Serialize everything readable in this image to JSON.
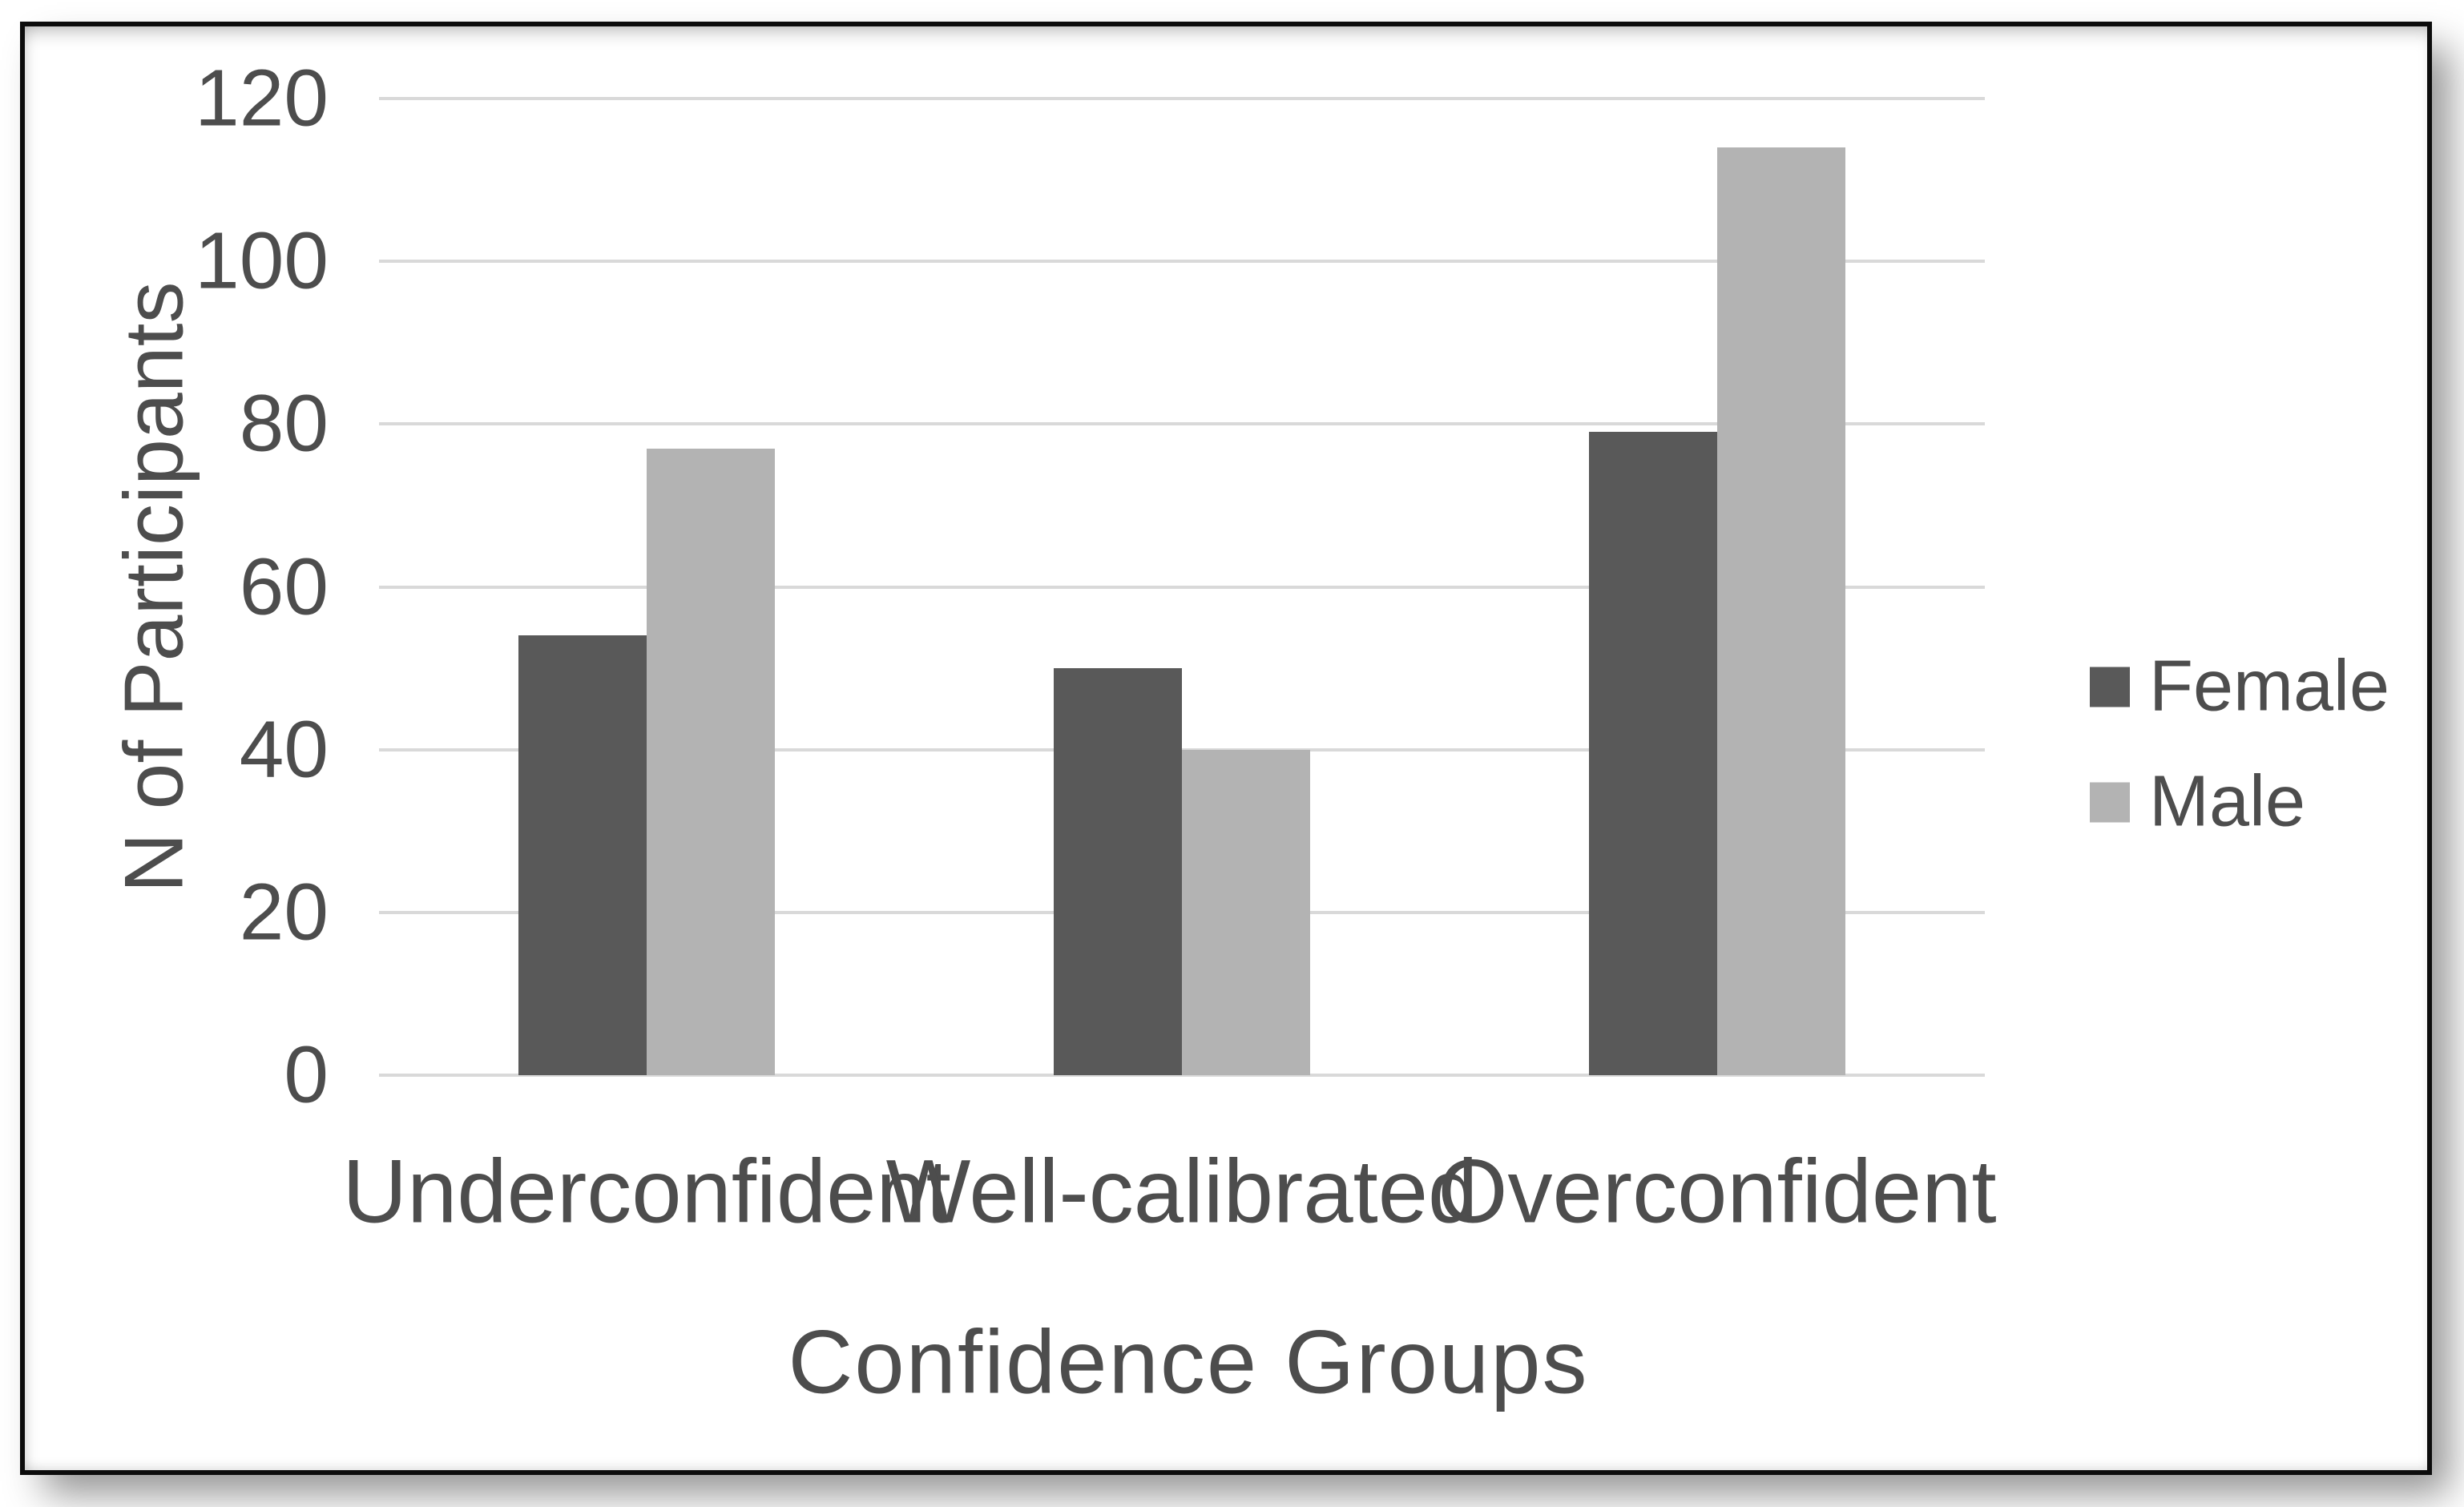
{
  "chart_data": {
    "type": "bar",
    "title": "",
    "categories": [
      "Underconfident",
      "Well-calibrated",
      "Overconfident"
    ],
    "series": [
      {
        "name": "Female",
        "color": "#595959",
        "values": [
          54,
          50,
          79
        ]
      },
      {
        "name": "Male",
        "color": "#b3b3b3",
        "values": [
          77,
          40,
          114
        ]
      }
    ],
    "xlabel": "Confidence Groups",
    "ylabel": "N of Participants",
    "ylim": [
      0,
      120
    ],
    "yticks": [
      0,
      20,
      40,
      60,
      80,
      100,
      120
    ],
    "grid": true,
    "legend_position": "right"
  },
  "colors": {
    "gridline": "#d9d9d9",
    "text": "#4d4d4d",
    "background": "#ffffff",
    "frame_border": "#0c0c0c"
  }
}
